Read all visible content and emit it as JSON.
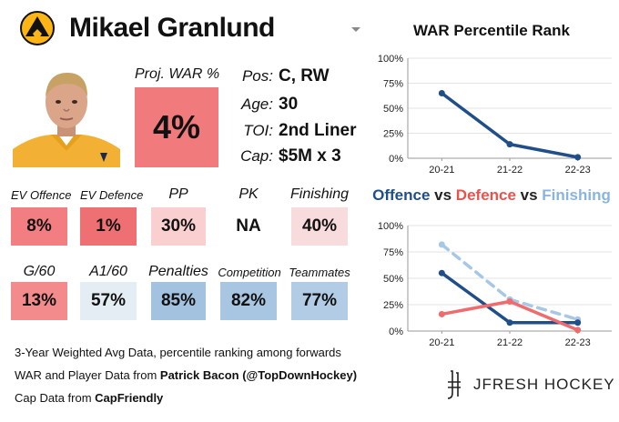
{
  "player": {
    "name": "Mikael Granlund",
    "team_logo": "penguins-logo-icon"
  },
  "proj_war": {
    "label": "Proj. WAR %",
    "value": "4%",
    "color": "#f07a7c"
  },
  "bio": [
    {
      "label": "Pos:",
      "value": "C, RW"
    },
    {
      "label": "Age:",
      "value": "30"
    },
    {
      "label": "TOI:",
      "value": "2nd Liner"
    },
    {
      "label": "Cap:",
      "value": "$5M x 3"
    }
  ],
  "stats_row1": [
    {
      "label": "EV Offence",
      "value": "8%",
      "color": "#f37e81"
    },
    {
      "label": "EV Defence",
      "value": "1%",
      "color": "#ef7072"
    },
    {
      "label": "PP",
      "value": "30%",
      "color": "#f9cfd0"
    },
    {
      "label": "PK",
      "value": "NA",
      "color": "#ffffff"
    },
    {
      "label": "Finishing",
      "value": "40%",
      "color": "#f8dcdd"
    }
  ],
  "stats_row2": [
    {
      "label": "G/60",
      "value": "13%",
      "color": "#f38a8c"
    },
    {
      "label": "A1/60",
      "value": "57%",
      "color": "#e4ecf4"
    },
    {
      "label": "Penalties",
      "value": "85%",
      "color": "#a3c2e0"
    },
    {
      "label": "Competition",
      "value": "82%",
      "color": "#a8c6e2"
    },
    {
      "label": "Teammates",
      "value": "77%",
      "color": "#b2cce6"
    }
  ],
  "footer": {
    "line1": "3-Year Weighted Avg Data, percentile ranking among forwards",
    "line2_prefix": "WAR and Player Data from ",
    "line2_bold": "Patrick Bacon (@TopDownHockey)",
    "line3_prefix": "Cap Data from ",
    "line3_bold": "CapFriendly",
    "brand": "JFRESH HOCKEY"
  },
  "chart_data": [
    {
      "type": "line",
      "title": "WAR Percentile Rank",
      "categories": [
        "20-21",
        "21-22",
        "22-23"
      ],
      "ylim": [
        0,
        100
      ],
      "yticks": [
        "0%",
        "25%",
        "50%",
        "75%",
        "100%"
      ],
      "series": [
        {
          "name": "WAR",
          "values": [
            65,
            14,
            1
          ],
          "color": "#1f4e89",
          "dashed": false
        }
      ]
    },
    {
      "type": "line",
      "title_parts": [
        {
          "text": "Offence",
          "color": "#1f4e89"
        },
        {
          "text": " vs ",
          "color": "#222222"
        },
        {
          "text": "Defence",
          "color": "#e8524f"
        },
        {
          "text": " vs ",
          "color": "#222222"
        },
        {
          "text": "Finishing",
          "color": "#8ab4e0"
        }
      ],
      "categories": [
        "20-21",
        "21-22",
        "22-23"
      ],
      "ylim": [
        0,
        100
      ],
      "yticks": [
        "0%",
        "25%",
        "50%",
        "75%",
        "100%"
      ],
      "series": [
        {
          "name": "Offence",
          "values": [
            55,
            8,
            8
          ],
          "color": "#1f4e89",
          "dashed": false
        },
        {
          "name": "Defence",
          "values": [
            16,
            28,
            1
          ],
          "color": "#ee6b6e",
          "dashed": false
        },
        {
          "name": "Finishing",
          "values": [
            82,
            30,
            11
          ],
          "color": "#a7c7e7",
          "dashed": true
        }
      ]
    }
  ]
}
